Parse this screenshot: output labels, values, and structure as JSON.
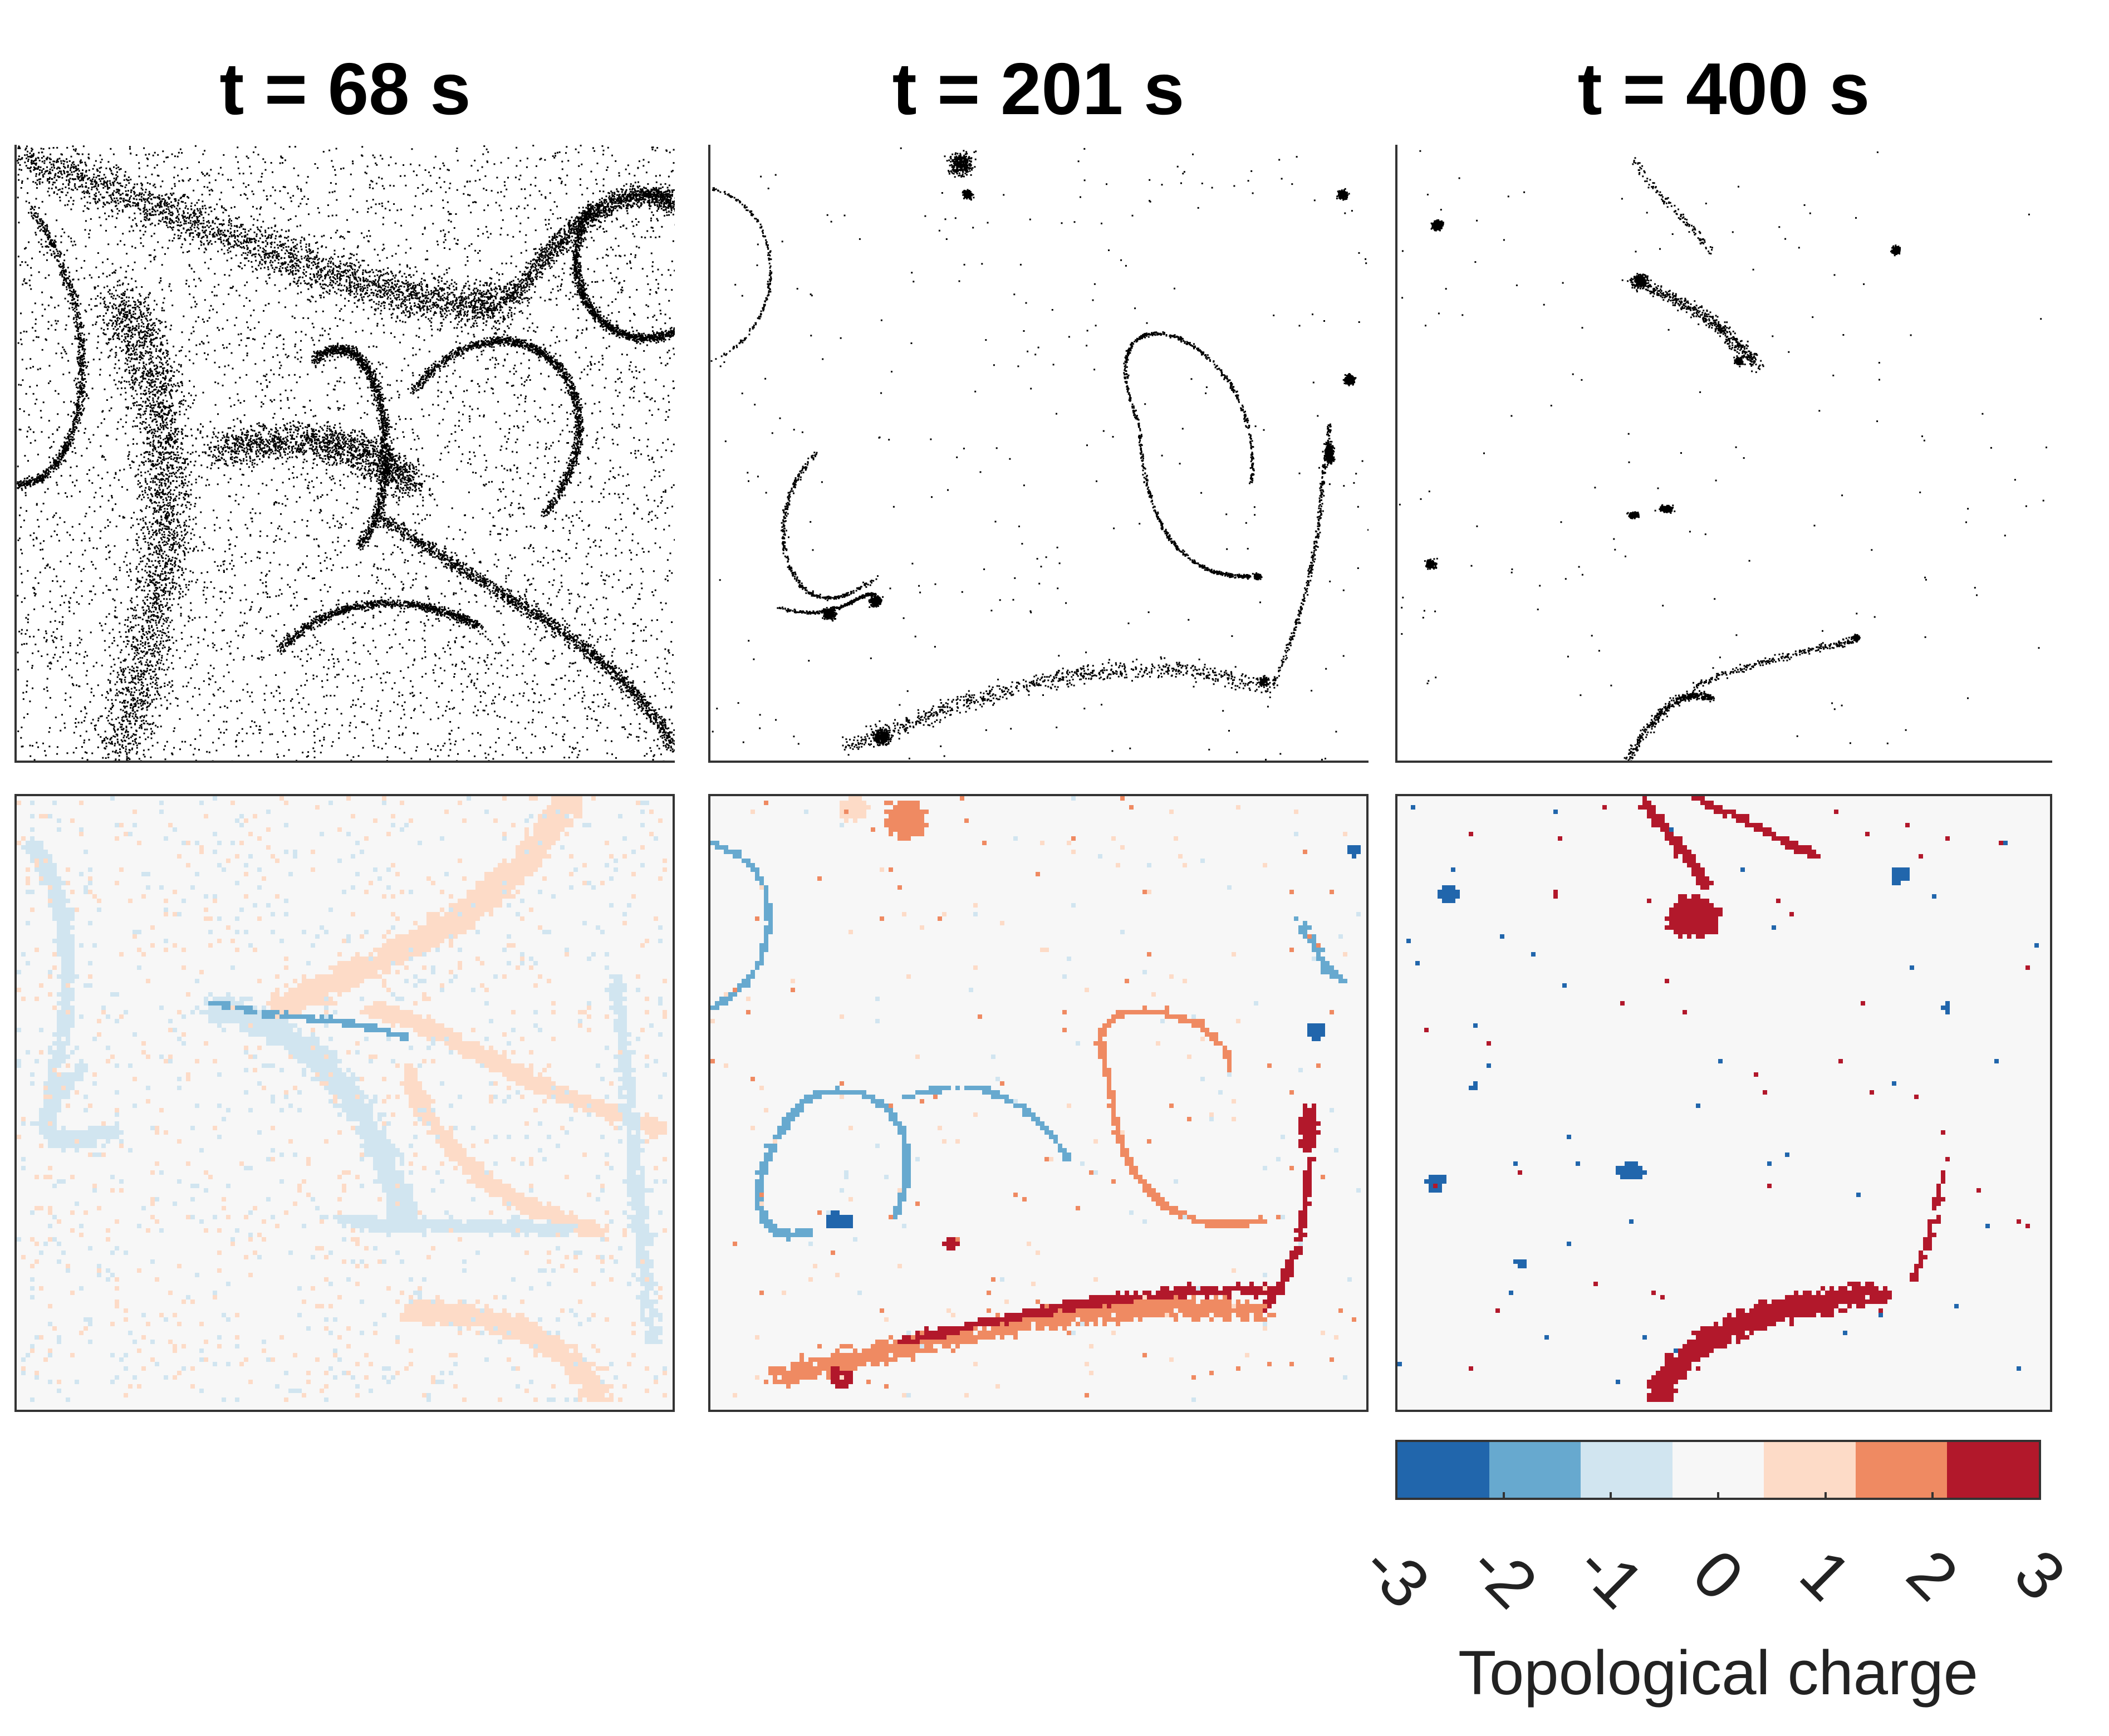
{
  "chart_data": [
    {
      "type": "scatter",
      "title": "t = 68 s"
    },
    {
      "type": "scatter",
      "title": "t = 201 s"
    },
    {
      "type": "scatter",
      "title": "t = 400 s"
    },
    {
      "type": "heatmap",
      "title": ""
    },
    {
      "type": "heatmap",
      "title": ""
    },
    {
      "type": "heatmap",
      "title": ""
    }
  ],
  "colorbar": {
    "label": "Topological charge",
    "ticks": [
      "-3",
      "-2",
      "-1",
      "0",
      "1",
      "2",
      "3"
    ],
    "colors": [
      "#2166ac",
      "#67a9cf",
      "#d1e5f0",
      "#f7f7f7",
      "#fddbc7",
      "#ef8a62",
      "#b2182b"
    ],
    "range": [
      -3,
      3
    ]
  }
}
